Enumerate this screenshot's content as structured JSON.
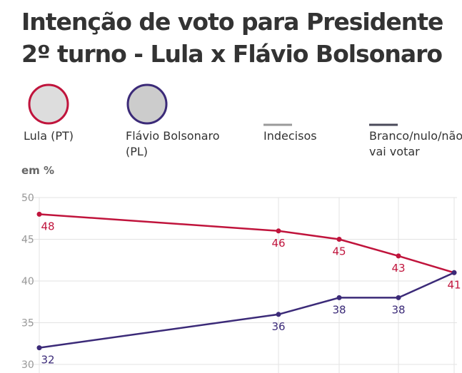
{
  "chart_data": {
    "type": "line",
    "title": "Intenção de voto para Presidente 2º turno - Lula x Flávio Bolsonaro",
    "y_unit_label": "em %",
    "categories": [
      null,
      null,
      null,
      null,
      null
    ],
    "series": [
      {
        "name": "Lula (PT)",
        "color": "#c0143c",
        "values": [
          48,
          46,
          45,
          43,
          41
        ]
      },
      {
        "name": "Flávio Bolsonaro (PL)",
        "color": "#3b2a78",
        "values": [
          32,
          36,
          38,
          38,
          41
        ]
      },
      {
        "name": "Indecisos",
        "color": "#9a9a9a",
        "values": [
          null,
          null,
          null,
          null,
          null
        ]
      },
      {
        "name": "Branco/nulo/não vai votar",
        "color": "#4a4a5a",
        "values": [
          null,
          null,
          null,
          null,
          null
        ]
      }
    ],
    "ylim": [
      30,
      50
    ],
    "yticks": [
      30,
      35,
      40,
      45,
      50
    ],
    "grid": true
  }
}
